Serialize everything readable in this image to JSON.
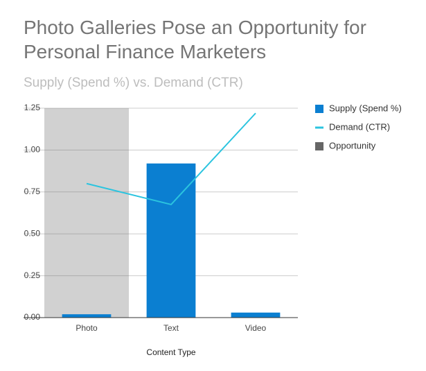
{
  "chart_data": {
    "type": "combo",
    "title": "Photo Galleries Pose an Opportunity for Personal Finance Marketers",
    "subtitle": "Supply (Spend %) vs. Demand (CTR)",
    "x_label": "Content Type",
    "categories": [
      "Photo",
      "Text",
      "Video"
    ],
    "series": [
      {
        "name": "Supply (Spend %)",
        "type": "bar",
        "color": "#0b7fd1",
        "values": [
          0.02,
          0.92,
          0.03
        ]
      },
      {
        "name": "Demand (CTR)",
        "type": "line",
        "color": "#2bc4df",
        "values": [
          0.8,
          0.675,
          1.22
        ]
      },
      {
        "name": "Opportunity",
        "type": "band",
        "color": "#666666",
        "opacity": 0.3,
        "values": [
          1.25,
          0,
          0
        ]
      }
    ],
    "ylim": [
      0,
      1.25
    ],
    "yticks": [
      {
        "value": 0,
        "label": "0.00"
      },
      {
        "value": 0.25,
        "label": "0.25"
      },
      {
        "value": 0.5,
        "label": "0.50"
      },
      {
        "value": 0.75,
        "label": "0.75"
      },
      {
        "value": 1,
        "label": "1.00"
      },
      {
        "value": 1.25,
        "label": "1.25"
      }
    ],
    "grid": true,
    "legend": "right"
  }
}
